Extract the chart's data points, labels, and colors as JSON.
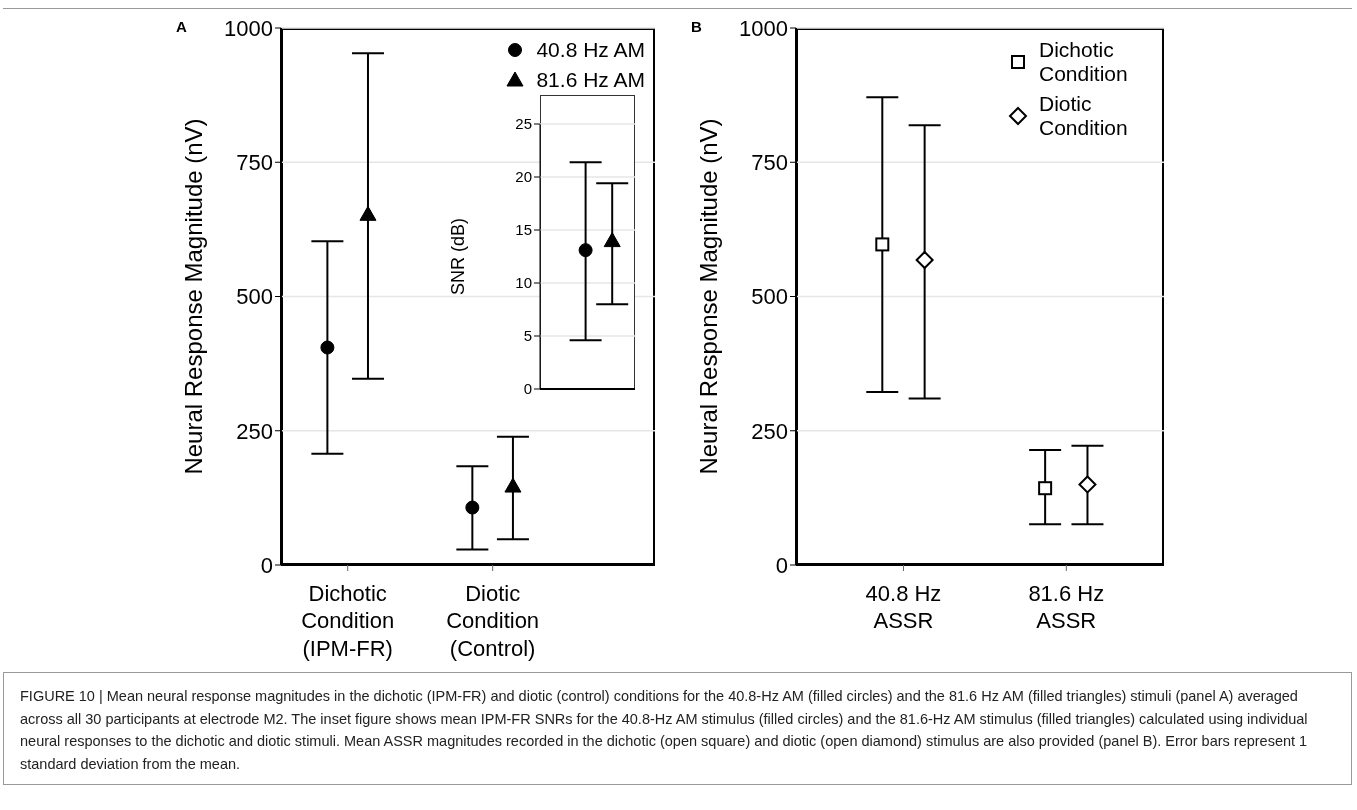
{
  "chart_data": [
    {
      "type": "scatter",
      "title": "A",
      "ylabel": "Neural Response Magnitude (nV)",
      "categories": [
        "Dichotic Condition (IPM-FR)",
        "Diotic Condition (Control)"
      ],
      "ylim": [
        0,
        1000
      ],
      "yticks": [
        0,
        250,
        500,
        750,
        1000
      ],
      "grid": "y",
      "legend": "top right",
      "series": [
        {
          "name": "40.8 Hz AM",
          "color": "#000000",
          "marker": "circle",
          "values": [
            405,
            107
          ],
          "errors": [
            [
              207,
              603
            ],
            [
              29,
              184
            ]
          ]
        },
        {
          "name": "81.6 Hz AM",
          "color": "#000000",
          "marker": "triangle",
          "values": [
            653,
            147
          ],
          "errors": [
            [
              347,
              953
            ],
            [
              48,
              239
            ]
          ]
        }
      ]
    },
    {
      "type": "scatter",
      "ylabel": "SNR (dB)",
      "categories": [
        null
      ],
      "ylim": [
        0,
        25
      ],
      "yticks": [
        0,
        5,
        10,
        15,
        20,
        25
      ],
      "grid": "y",
      "tick_labels": "y",
      "series": [
        {
          "color": "#000000",
          "marker": "circle",
          "values": [
            13.1
          ],
          "errors": [
            [
              4.6,
              21.4
            ]
          ]
        },
        {
          "color": "#000000",
          "marker": "triangle",
          "values": [
            14.0
          ],
          "errors": [
            [
              8.0,
              19.4
            ]
          ]
        }
      ]
    },
    {
      "type": "scatter",
      "title": "B",
      "ylabel": "Neural Response Magnitude (nV)",
      "categories": [
        "40.8 Hz ASSR",
        "81.6 Hz ASSR"
      ],
      "ylim": [
        0,
        1000
      ],
      "yticks": [
        0,
        250,
        500,
        750,
        1000
      ],
      "grid": "y",
      "legend": "top right",
      "series": [
        {
          "name": "Dichotic Condition",
          "color": "#000000",
          "marker": "square",
          "values": [
            597,
            143
          ],
          "errors": [
            [
              322,
              871
            ],
            [
              76,
              214
            ]
          ]
        },
        {
          "name": "Diotic Condition",
          "color": "#000000",
          "marker": "diamond",
          "values": [
            568,
            150
          ],
          "errors": [
            [
              310,
              819
            ],
            [
              76,
              222
            ]
          ]
        }
      ],
      "annotations": [
        "FIGURE 10 | Mean neural response magnitudes in the dichotic (IPM-FR) and diotic (control) conditions for the 40.8-Hz AM (filled circles) and the 81.6 Hz AM (filled triangles) stimuli (panel A) averaged across all 30 participants at electrode M2. The inset figure shows mean IPM-FR SNRs for the 40.8-Hz AM stimulus (filled circles) and the 81.6-Hz AM stimulus (filled triangles) calculated using individual neural responses to the dichotic and diotic stimuli. Mean ASSR magnitudes recorded in the dichotic (open square) and diotic (open diamond) stimulus are also provided (panel B). Error bars represent 1 standard deviation from the mean."
      ]
    }
  ]
}
